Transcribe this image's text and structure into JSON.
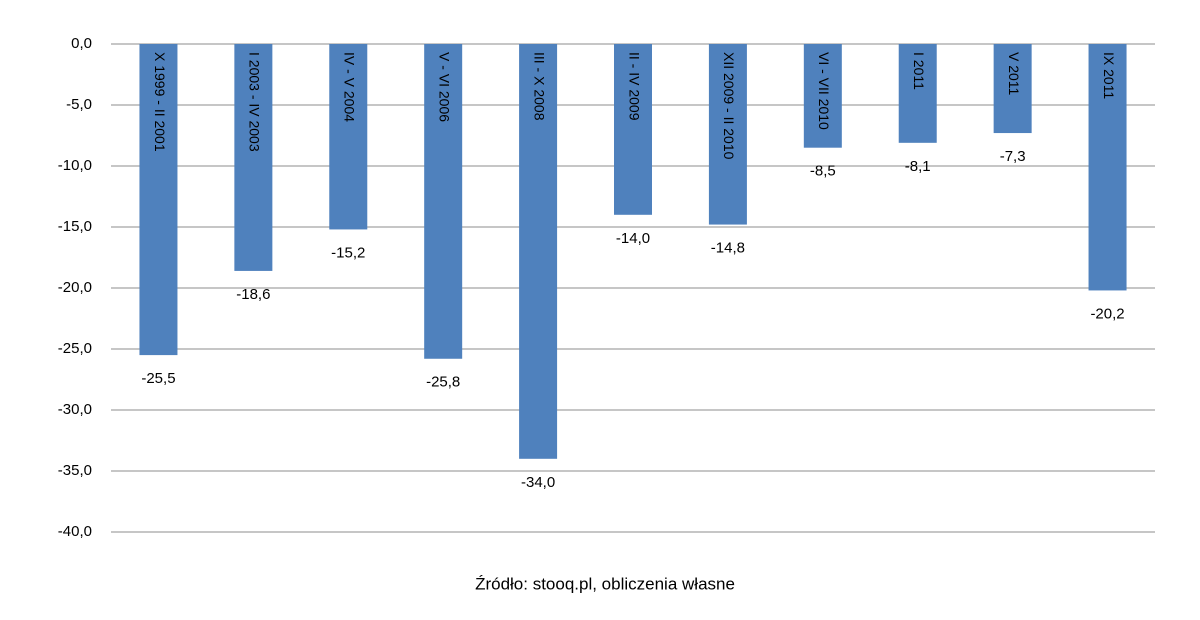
{
  "chart_data": {
    "type": "bar",
    "categories": [
      "X 1999 - II 2001",
      "I 2003 - IV 2003",
      "IV - V 2004",
      "V - VI 2006",
      "III - X 2008",
      "II - IV 2009",
      "XII 2009 - II 2010",
      "VI - VII 2010",
      "I 2011",
      "V 2011",
      "IX 2011"
    ],
    "values": [
      -25.5,
      -18.6,
      -15.2,
      -25.8,
      -34.0,
      -14.0,
      -14.8,
      -8.5,
      -8.1,
      -7.3,
      -20.2
    ],
    "value_labels": [
      "-25,5",
      "-18,6",
      "-15,2",
      "-25,8",
      "-34,0",
      "-14,0",
      "-14,8",
      "-8,5",
      "-8,1",
      "-7,3",
      "-20,2"
    ],
    "color": "#4f81bd",
    "ylim": [
      -40,
      0
    ],
    "yticks": [
      {
        "value": 0,
        "label": "0,0"
      },
      {
        "value": -5,
        "label": "-5,0"
      },
      {
        "value": -10,
        "label": "-10,0"
      },
      {
        "value": -15,
        "label": "-15,0"
      },
      {
        "value": -20,
        "label": "-20,0"
      },
      {
        "value": -25,
        "label": "-25,0"
      },
      {
        "value": -30,
        "label": "-30,0"
      },
      {
        "value": -35,
        "label": "-35,0"
      },
      {
        "value": -40,
        "label": "-40,0"
      }
    ],
    "grid": true,
    "source": "Źródło: stooq.pl, obliczenia własne"
  }
}
